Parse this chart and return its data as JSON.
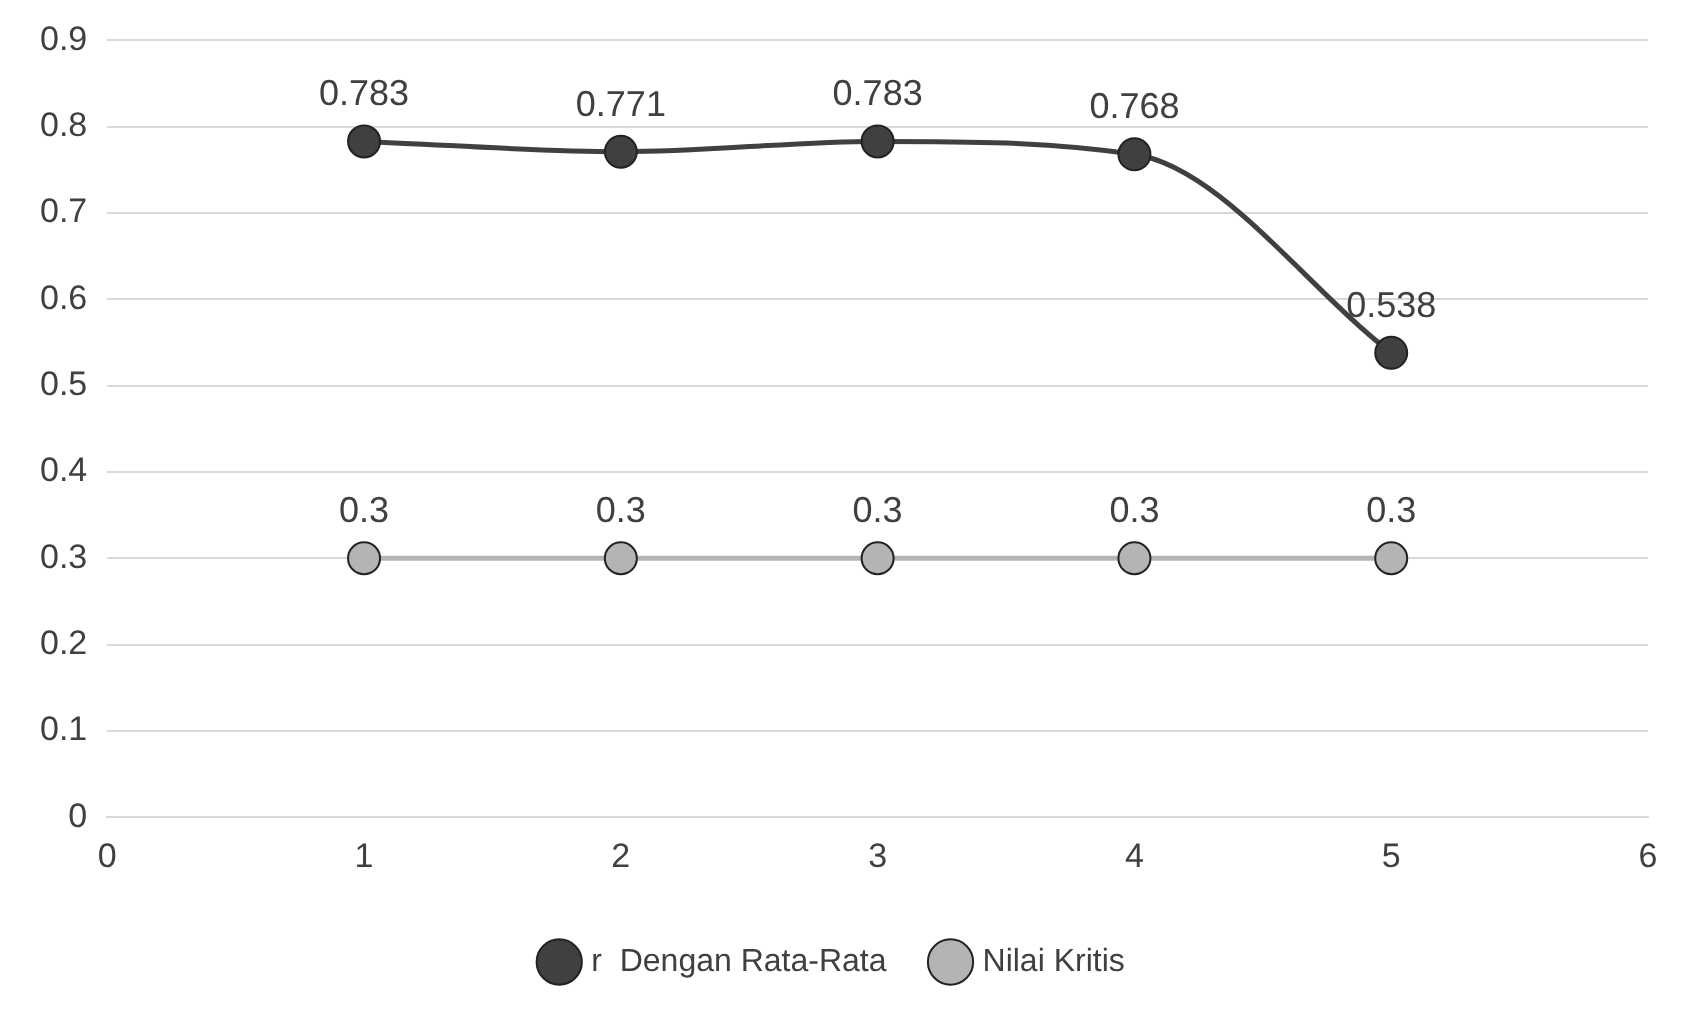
{
  "chart_data": {
    "type": "line",
    "x": [
      1,
      2,
      3,
      4,
      5
    ],
    "series": [
      {
        "name": "r  Dengan Rata-Rata",
        "color": "#404040",
        "values": [
          0.783,
          0.771,
          0.783,
          0.768,
          0.538
        ]
      },
      {
        "name": "Nilai Kritis",
        "color": "#b4b4b4",
        "values": [
          0.3,
          0.3,
          0.3,
          0.3,
          0.3
        ]
      }
    ],
    "xlim": [
      0,
      6
    ],
    "xticks": [
      0,
      1,
      2,
      3,
      4,
      5,
      6
    ],
    "ylim": [
      0,
      0.9
    ],
    "yticks": [
      0,
      0.1,
      0.2,
      0.3,
      0.4,
      0.5,
      0.6,
      0.7,
      0.8,
      0.9
    ],
    "grid": "y",
    "legend": "bottom",
    "marker": "circle",
    "line_style": "solid",
    "data_labels": true
  }
}
